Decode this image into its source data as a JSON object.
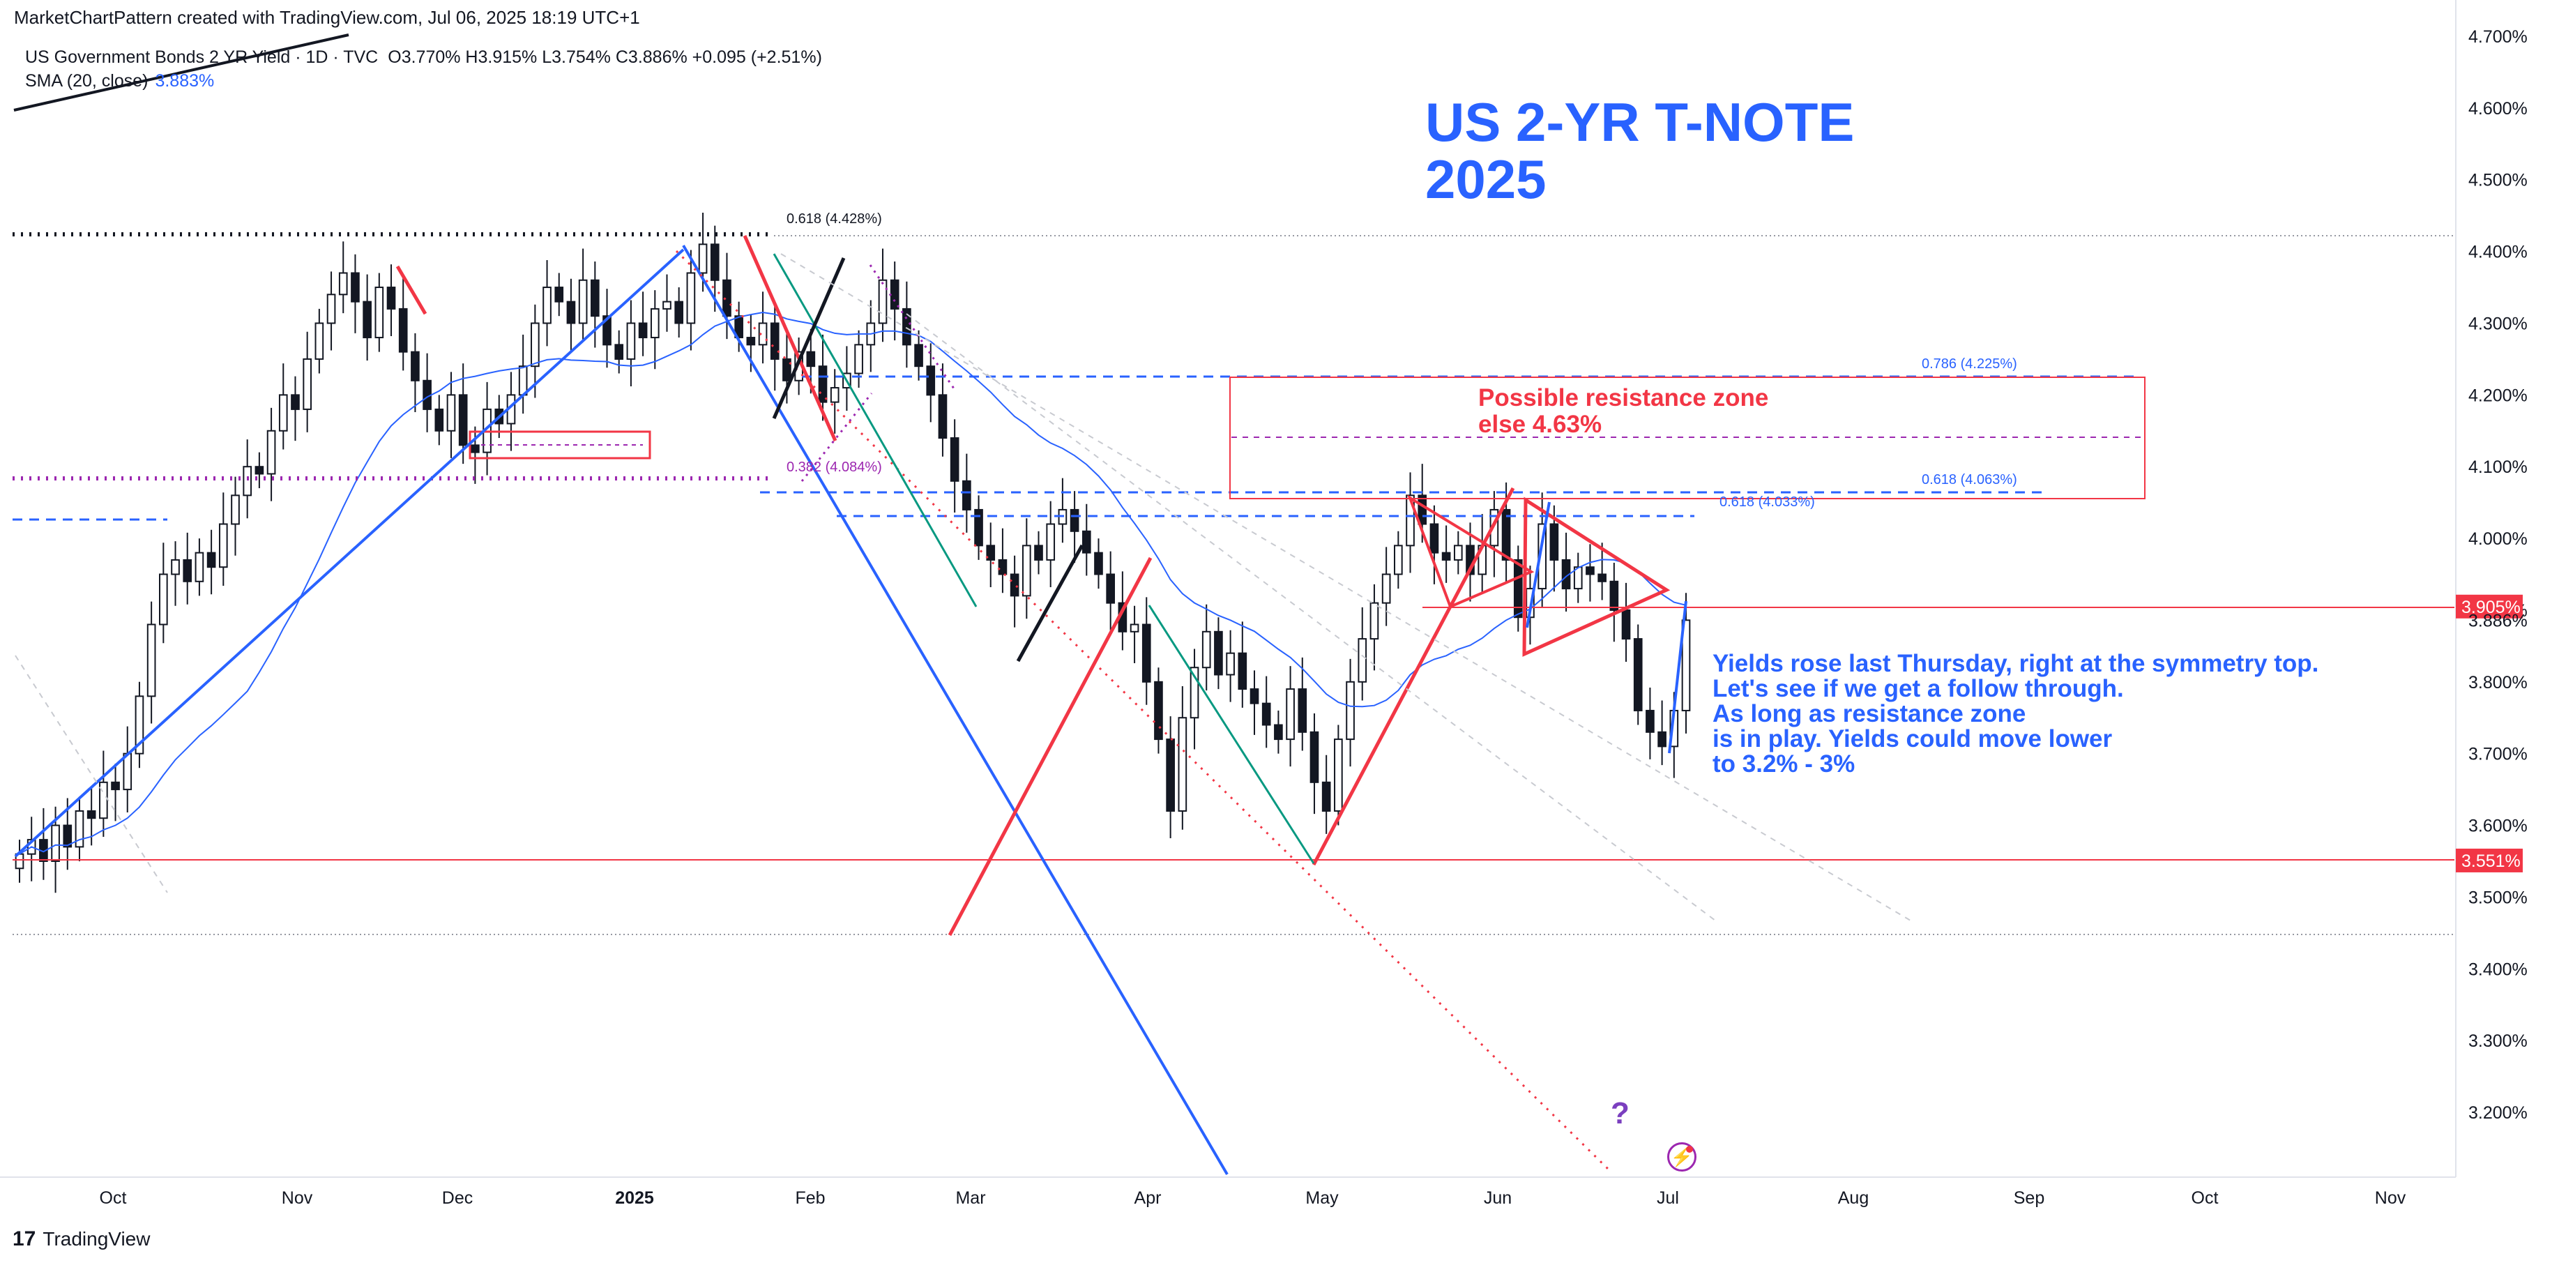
{
  "header": {
    "created_by": "MarketChartPattern created with TradingView.com, Jul 06, 2025 18:19 UTC+1",
    "symbol": "US Government Bonds 2 YR Yield · 1D · TVC",
    "ohlc": "O3.770% H3.915% L3.754% C3.886% +0.095 (+2.51%)",
    "sma_label": "SMA (20, close)",
    "sma_value": "3.883%"
  },
  "annotations": {
    "title_line1": "US 2-YR T-NOTE",
    "title_line2": "2025",
    "resistance_line1": "Possible resistance zone",
    "resistance_line2": "else 4.63%",
    "note_lines": [
      "Yields rose last Thursday, right at the symmetry top.",
      "Let's see if we get a follow through.",
      "As long as resistance zone",
      "is in play. Yields could move lower",
      "to 3.2% - 3%"
    ],
    "question_mark": "?",
    "fib_labels": {
      "fib_0618_top": "0.618 (4.428%)",
      "fib_0786": "0.786 (4.225%)",
      "fib_0618_mid": "0.618 (4.063%)",
      "fib_0618_low": "0.618 (4.033%)",
      "fib_0382": "0.382 (4.084%)"
    }
  },
  "footer": {
    "brand": "TradingView",
    "brand_mark": "17"
  },
  "colors": {
    "blue": "#2962ff",
    "red": "#f23645",
    "purple": "#9c27b0",
    "green": "#089981",
    "sma": "#2962ff"
  },
  "chart_data": {
    "type": "candlestick",
    "title": "US 2-YR T-NOTE 2025",
    "ylim": [
      3.1,
      4.72
    ],
    "y_scale_note": "right axis, percent",
    "y_ticks": [
      "4.700%",
      "4.600%",
      "4.500%",
      "4.400%",
      "4.300%",
      "4.200%",
      "4.100%",
      "4.000%",
      "3.900%",
      "3.800%",
      "3.700%",
      "3.600%",
      "3.500%",
      "3.400%",
      "3.300%",
      "3.200%"
    ],
    "x_ticks": [
      "Oct",
      "Nov",
      "Dec",
      "2025",
      "Feb",
      "Mar",
      "Apr",
      "May",
      "Jun",
      "Jul",
      "Aug",
      "Sep",
      "Oct",
      "Nov"
    ],
    "price_badges": [
      {
        "value": "3.905%",
        "price": 3.905
      },
      {
        "value": "3.886%",
        "price": 3.886
      },
      {
        "value": "3.551%",
        "price": 3.551
      }
    ],
    "series_closes": [
      3.56,
      3.58,
      3.55,
      3.6,
      3.57,
      3.62,
      3.61,
      3.66,
      3.65,
      3.7,
      3.78,
      3.88,
      3.95,
      3.97,
      3.94,
      3.98,
      3.96,
      4.02,
      4.06,
      4.1,
      4.09,
      4.15,
      4.2,
      4.18,
      4.25,
      4.3,
      4.34,
      4.37,
      4.33,
      4.28,
      4.35,
      4.32,
      4.26,
      4.22,
      4.18,
      4.15,
      4.2,
      4.13,
      4.12,
      4.18,
      4.16,
      4.2,
      4.24,
      4.3,
      4.35,
      4.33,
      4.3,
      4.36,
      4.31,
      4.27,
      4.25,
      4.3,
      4.28,
      4.32,
      4.33,
      4.3,
      4.37,
      4.41,
      4.36,
      4.31,
      4.28,
      4.27,
      4.3,
      4.25,
      4.22,
      4.26,
      4.24,
      4.19,
      4.21,
      4.23,
      4.27,
      4.3,
      4.36,
      4.32,
      4.27,
      4.24,
      4.2,
      4.14,
      4.08,
      4.04,
      3.99,
      3.97,
      3.95,
      3.92,
      3.99,
      3.97,
      4.02,
      4.04,
      4.01,
      3.98,
      3.95,
      3.91,
      3.87,
      3.88,
      3.8,
      3.72,
      3.62,
      3.75,
      3.82,
      3.87,
      3.81,
      3.84,
      3.79,
      3.77,
      3.74,
      3.72,
      3.79,
      3.73,
      3.66,
      3.62,
      3.72,
      3.8,
      3.86,
      3.91,
      3.95,
      3.99,
      4.06,
      4.02,
      3.98,
      3.97,
      3.99,
      3.95,
      3.99,
      4.04,
      3.97,
      3.89,
      3.93,
      4.02,
      3.97,
      3.93,
      3.96,
      3.95,
      3.94,
      3.9,
      3.86,
      3.76,
      3.73,
      3.71,
      3.76,
      3.886
    ],
    "sma_closes_label": "SMA (20, close)"
  }
}
